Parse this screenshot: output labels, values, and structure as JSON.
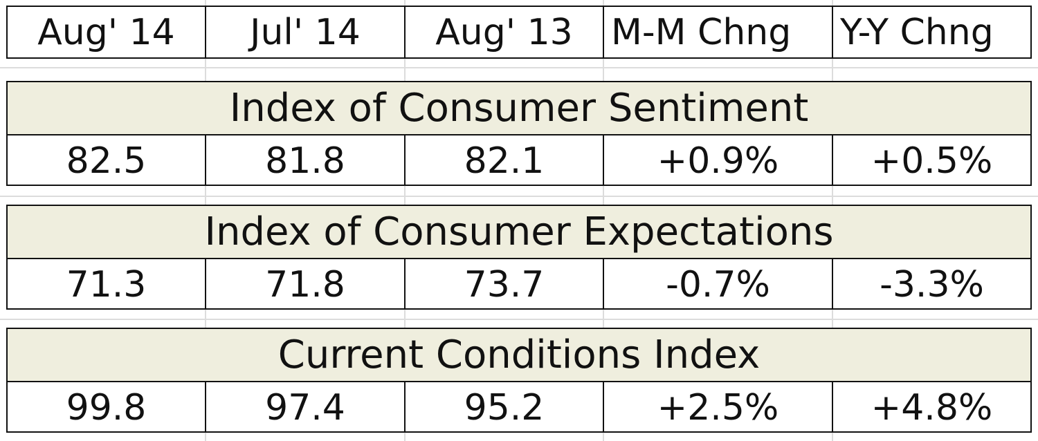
{
  "header": {
    "columns": [
      "Aug' 14",
      "Jul' 14",
      "Aug' 13",
      "M-M Chng",
      "Y-Y Chng"
    ]
  },
  "sections": [
    {
      "title": "Index of Consumer Sentiment",
      "values": [
        "82.5",
        "81.8",
        "82.1",
        "+0.9%",
        "+0.5%"
      ]
    },
    {
      "title": "Index of Consumer Expectations",
      "values": [
        "71.3",
        "71.8",
        "73.7",
        "-0.7%",
        "-3.3%"
      ]
    },
    {
      "title": "Current Conditions Index",
      "values": [
        "99.8",
        "97.4",
        "95.2",
        "+2.5%",
        "+4.8%"
      ]
    }
  ],
  "colors": {
    "title_band": "#efeede",
    "border": "#111111",
    "gridline": "#dcdcdc"
  }
}
